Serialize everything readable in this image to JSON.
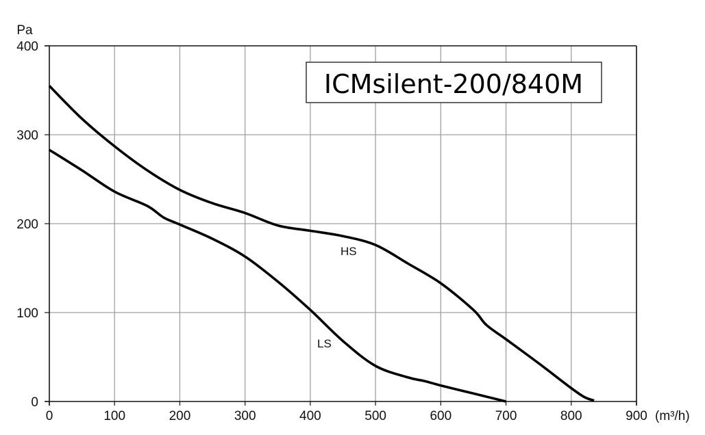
{
  "chart_data": {
    "type": "line",
    "title": "ICMsilent-200/840M",
    "xlabel": "(m³/h)",
    "ylabel": "Pa",
    "xlim": [
      0,
      900
    ],
    "ylim": [
      0,
      400
    ],
    "x_ticks": [
      0,
      100,
      200,
      300,
      400,
      500,
      600,
      700,
      800,
      900
    ],
    "y_ticks": [
      0,
      100,
      200,
      300,
      400
    ],
    "grid": true,
    "legend": "inline labels",
    "series": [
      {
        "name": "HS",
        "x": [
          0,
          50,
          100,
          150,
          200,
          250,
          300,
          350,
          400,
          450,
          500,
          550,
          600,
          650,
          670,
          700,
          750,
          800,
          820,
          835
        ],
        "values": [
          355,
          318,
          287,
          260,
          238,
          223,
          212,
          198,
          192,
          186,
          176,
          155,
          133,
          103,
          86,
          70,
          43,
          15,
          5,
          1
        ]
      },
      {
        "name": "LS",
        "x": [
          0,
          50,
          100,
          150,
          175,
          200,
          250,
          300,
          350,
          400,
          450,
          500,
          550,
          575,
          600,
          650,
          700
        ],
        "values": [
          283,
          260,
          236,
          220,
          207,
          199,
          183,
          163,
          135,
          103,
          68,
          40,
          27,
          23,
          18,
          9,
          0
        ]
      }
    ],
    "annotations": [
      {
        "text": "HS",
        "x": 460,
        "y": 170
      },
      {
        "text": "LS",
        "x": 420,
        "y": 64
      }
    ]
  },
  "labels": {
    "title": "ICMsilent-200/840M",
    "y_unit": "Pa",
    "x_unit": "(m³/h)",
    "hs": "HS",
    "ls": "LS"
  }
}
